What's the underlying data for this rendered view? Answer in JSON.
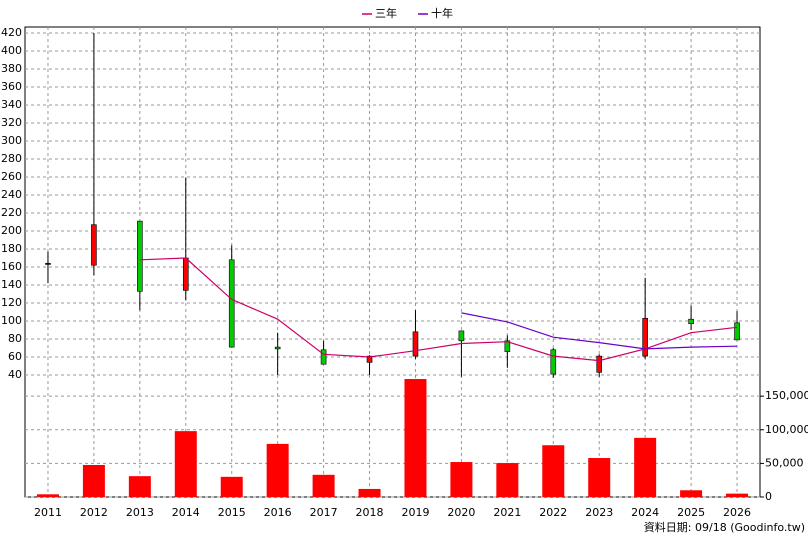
{
  "chart_data": {
    "type": "candlestick",
    "categories": [
      "2011",
      "2012",
      "2013",
      "2014",
      "2015",
      "2016",
      "2017",
      "2018",
      "2019",
      "2020",
      "2021",
      "2022",
      "2023",
      "2024",
      "2025",
      "2026"
    ],
    "candles": {
      "open": [
        164,
        162,
        211,
        134,
        168,
        71,
        68,
        54,
        61,
        89,
        78,
        68,
        43,
        61,
        102,
        98
      ],
      "high": [
        177,
        420,
        211,
        259,
        184,
        87,
        78,
        62,
        112,
        89,
        84,
        70,
        63,
        148,
        117,
        111
      ],
      "low": [
        142,
        151,
        112,
        123,
        71,
        40,
        52,
        40,
        58,
        38,
        48,
        37,
        38,
        58,
        90,
        79
      ],
      "close": [
        164,
        207,
        133,
        170,
        71,
        69,
        52,
        61,
        88,
        78,
        66,
        41,
        61,
        103,
        97,
        79
      ],
      "up_color": "#ff0000",
      "down_color": "#00cc00",
      "flat_color": "#000000"
    },
    "series": [
      {
        "name": "三年",
        "color": "#cc0066",
        "values": [
          null,
          null,
          168,
          170,
          124,
          102,
          63,
          60,
          67,
          75,
          77,
          61,
          56,
          69,
          87,
          93
        ]
      },
      {
        "name": "十年",
        "color": "#6a00cc",
        "values": [
          null,
          null,
          null,
          null,
          null,
          null,
          null,
          null,
          null,
          109,
          99,
          82,
          76,
          69,
          71,
          72
        ]
      }
    ],
    "ylim": [
      40,
      420
    ],
    "yticks": [
      40,
      60,
      80,
      100,
      120,
      140,
      160,
      180,
      200,
      220,
      240,
      260,
      280,
      300,
      320,
      340,
      360,
      380,
      400,
      420
    ],
    "volume": {
      "color": "#ff0000",
      "values": [
        4000,
        47600,
        31000,
        98000,
        30000,
        79000,
        33000,
        12000,
        175500,
        52000,
        50500,
        77000,
        58000,
        88000,
        10000,
        5000
      ],
      "ylim": [
        0,
        180000
      ],
      "yticks": [
        {
          "value": 0,
          "label": "0"
        },
        {
          "value": 50000,
          "label": "50,000"
        },
        {
          "value": 100000,
          "label": "100,000"
        },
        {
          "value": 150000,
          "label": "150,000"
        }
      ]
    },
    "grid": true,
    "footer": "資料日期: 09/18 (Goodinfo.tw)"
  }
}
